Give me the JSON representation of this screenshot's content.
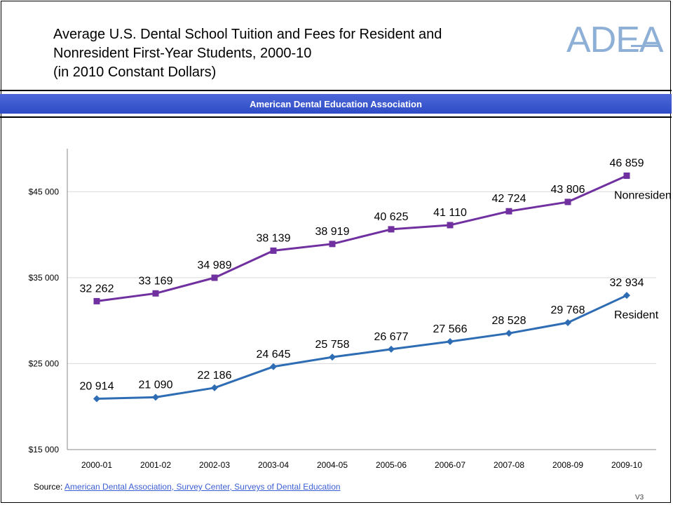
{
  "header": {
    "title_line1": "Average U.S. Dental School Tuition and Fees for Resident and",
    "title_line2": "Nonresident First-Year Students, 2000-10",
    "title_line3": "(in 2010 Constant Dollars)",
    "logo_text": "ADEA",
    "banner_text": "American Dental Education Association"
  },
  "footer": {
    "source_label": "Source:",
    "source_link": "American Dental Association, Survey Center, Surveys of Dental Education",
    "version": "V3"
  },
  "colors": {
    "resident": "#2e6db4",
    "nonresident": "#7030a0",
    "banner": "#3a55cc"
  },
  "chart_data": {
    "type": "line",
    "categories": [
      "2000-01",
      "2001-02",
      "2002-03",
      "2003-04",
      "2004-05",
      "2005-06",
      "2006-07",
      "2007-08",
      "2008-09",
      "2009-10"
    ],
    "ylim": [
      15000,
      50000
    ],
    "yticks": [
      15000,
      25000,
      35000,
      45000
    ],
    "ytick_labels": [
      "$15 000",
      "$25 000",
      "$35 000",
      "$45 000"
    ],
    "grid": true,
    "series": [
      {
        "name": "Nonresident",
        "marker": "square",
        "values": [
          32262,
          33169,
          34989,
          38139,
          38919,
          40625,
          41110,
          42724,
          43806,
          46859
        ],
        "labels": [
          "32 262",
          "33 169",
          "34 989",
          "38 139",
          "38 919",
          "40 625",
          "41 110",
          "42 724",
          "43 806",
          "46 859"
        ]
      },
      {
        "name": "Resident",
        "marker": "diamond",
        "values": [
          20914,
          21090,
          22186,
          24645,
          25758,
          26677,
          27566,
          28528,
          29768,
          32934
        ],
        "labels": [
          "20 914",
          "21 090",
          "22 186",
          "24 645",
          "25 758",
          "26 677",
          "27 566",
          "28 528",
          "29 768",
          "32 934"
        ]
      }
    ]
  }
}
